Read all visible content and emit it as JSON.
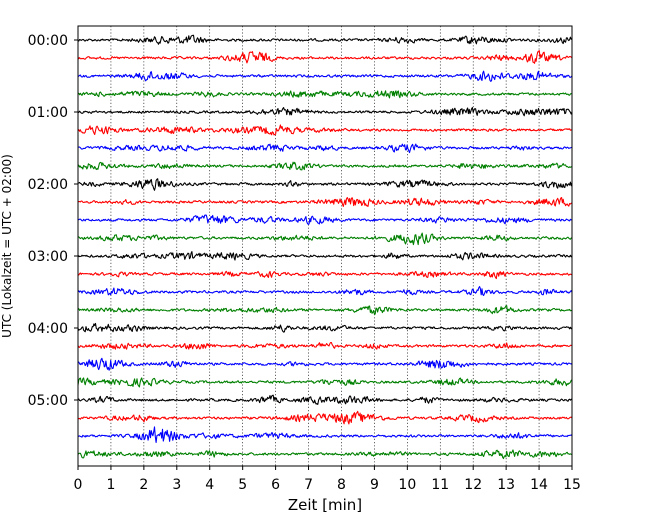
{
  "chart_data": {
    "type": "line",
    "title": "",
    "xlabel": "Zeit  [min]",
    "ylabel": "UTC (Lokalzeit = UTC + 02:00)",
    "xlim": [
      0,
      15
    ],
    "x_ticks": [
      0,
      1,
      2,
      3,
      4,
      5,
      6,
      7,
      8,
      9,
      10,
      11,
      12,
      13,
      14,
      15
    ],
    "x_tick_labels": [
      "0",
      "1",
      "2",
      "3",
      "4",
      "5",
      "6",
      "7",
      "8",
      "9",
      "10",
      "11",
      "12",
      "13",
      "14",
      "15"
    ],
    "y_tick_labels": [
      "00:00",
      "01:00",
      "02:00",
      "03:00",
      "04:00",
      "05:00"
    ],
    "trace_interval_min": 15,
    "trace_count": 24,
    "trace_colors": [
      "#000000",
      "#ff0000",
      "#0000ff",
      "#008000"
    ],
    "grid": "vertical dotted",
    "series": [
      {
        "start": "00:00"
      },
      {
        "start": "00:15"
      },
      {
        "start": "00:30"
      },
      {
        "start": "00:45"
      },
      {
        "start": "01:00"
      },
      {
        "start": "01:15"
      },
      {
        "start": "01:30"
      },
      {
        "start": "01:45"
      },
      {
        "start": "02:00"
      },
      {
        "start": "02:15"
      },
      {
        "start": "02:30"
      },
      {
        "start": "02:45"
      },
      {
        "start": "03:00"
      },
      {
        "start": "03:15"
      },
      {
        "start": "03:30"
      },
      {
        "start": "03:45"
      },
      {
        "start": "04:00"
      },
      {
        "start": "04:15"
      },
      {
        "start": "04:30"
      },
      {
        "start": "04:45"
      },
      {
        "start": "05:00"
      },
      {
        "start": "05:15"
      },
      {
        "start": "05:30"
      },
      {
        "start": "05:45"
      }
    ]
  }
}
